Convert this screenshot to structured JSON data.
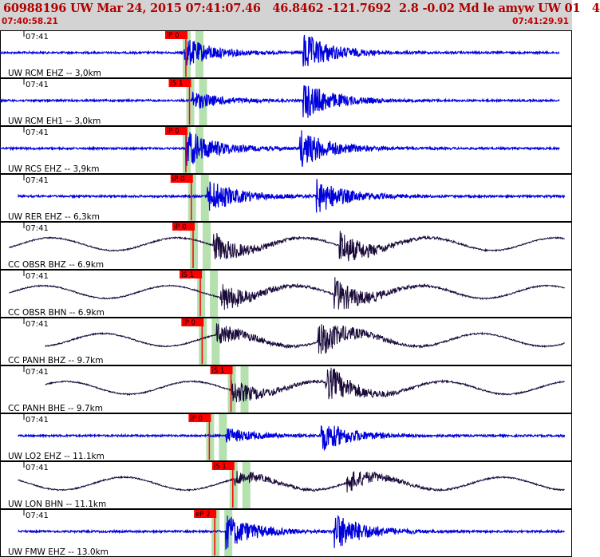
{
  "header": {
    "title": "60988196 UW Mar 24, 2015 07:41:07.46   46.8462 -121.7692  2.8 -0.02 Md le amyw UW 01   4",
    "start_time": "07:40:58.21",
    "end_time": "07:41:29.91"
  },
  "colors": {
    "header_bg": "#d3d3d3",
    "title": "#b00000",
    "blue_trace": "#0000dd",
    "dark_trace": "#1a0a3a",
    "pick_flag": "#ff0000",
    "pick_window": "#a8dca0",
    "axis_text": "#000000"
  },
  "chart_data": {
    "type": "line",
    "x_unit": "seconds after 07:40:58.21",
    "xlim": [
      0,
      31.7
    ],
    "tick_label": "07:41",
    "grid": false,
    "traces": [
      {
        "name": "UW RCM EHZ -- 3,0km",
        "pick": "iP 0",
        "pick_time": 10.3,
        "color": "blue",
        "start": 0.0,
        "end": 31.0,
        "activity": [
          [
            10.2,
            0.8
          ],
          [
            16.8,
            1.0
          ]
        ]
      },
      {
        "name": "UW RCM EH1 -- 3,0km",
        "pick": "iS 1",
        "pick_time": 10.5,
        "color": "blue",
        "start": 0.0,
        "end": 31.0,
        "activity": [
          [
            10.6,
            0.5
          ],
          [
            16.8,
            1.0
          ]
        ]
      },
      {
        "name": "UW RCS EHZ -- 3,9km",
        "pick": "iP 0",
        "pick_time": 10.3,
        "color": "blue",
        "start": 0.0,
        "end": 31.0,
        "activity": [
          [
            10.3,
            1.0
          ],
          [
            16.6,
            1.0
          ]
        ]
      },
      {
        "name": "UW RER EHZ -- 6,3km",
        "pick": "iP 0",
        "pick_time": 10.6,
        "color": "blue",
        "start": 1.0,
        "end": 31.3,
        "activity": [
          [
            11.5,
            0.9
          ],
          [
            17.5,
            0.9
          ]
        ]
      },
      {
        "name": "CC OBSR BHZ -- 6.9km",
        "pick": "iP 0",
        "pick_time": 10.7,
        "color": "dark",
        "start": 0.5,
        "end": 31.3,
        "activity": [
          [
            11.8,
            0.8
          ],
          [
            18.8,
            0.9
          ]
        ]
      },
      {
        "name": "CC OBSR BHN -- 6.9km",
        "pick": "iS 1",
        "pick_time": 11.1,
        "color": "dark",
        "start": 0.5,
        "end": 31.3,
        "activity": [
          [
            12.2,
            0.8
          ],
          [
            18.5,
            0.9
          ]
        ]
      },
      {
        "name": "CC PANH BHZ -- 9.7km",
        "pick": "iP 0",
        "pick_time": 11.2,
        "color": "dark",
        "start": 2.5,
        "end": 31.3,
        "activity": [
          [
            12.0,
            0.6
          ],
          [
            17.6,
            1.0
          ]
        ]
      },
      {
        "name": "CC PANH BHE -- 9.7km",
        "pick": "iS 1",
        "pick_time": 12.8,
        "color": "dark",
        "start": 2.5,
        "end": 31.3,
        "activity": [
          [
            12.8,
            0.7
          ],
          [
            18.0,
            1.0
          ]
        ]
      },
      {
        "name": "UW LO2 EHZ -- 11.1km",
        "pick": "iP 0",
        "pick_time": 11.6,
        "color": "blue",
        "start": 1.0,
        "end": 31.3,
        "activity": [
          [
            12.5,
            0.4
          ],
          [
            17.8,
            0.8
          ]
        ]
      },
      {
        "name": "UW LON BHN -- 11.1km",
        "pick": "iS 1",
        "pick_time": 12.9,
        "color": "dark",
        "start": 1.0,
        "end": 31.3,
        "activity": [
          [
            13.0,
            0.4
          ],
          [
            19.2,
            0.6
          ]
        ]
      },
      {
        "name": "UW FMW EHZ -- 13.0km",
        "pick": "eP 2",
        "pick_time": 11.9,
        "color": "blue",
        "start": 1.0,
        "end": 31.3,
        "activity": [
          [
            12.5,
            0.9
          ],
          [
            18.5,
            1.0
          ]
        ]
      }
    ]
  }
}
